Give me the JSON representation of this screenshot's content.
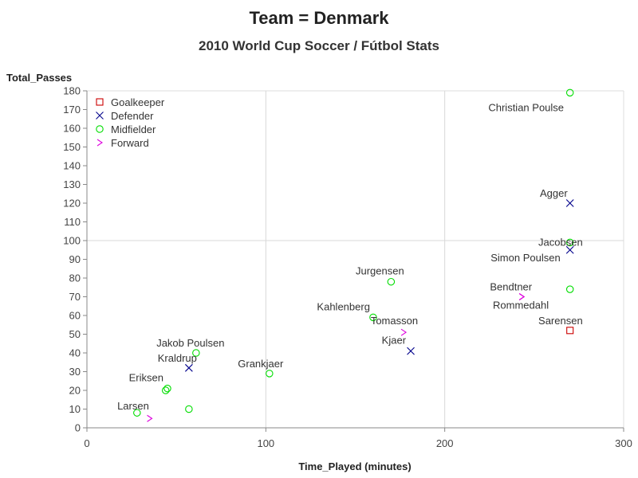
{
  "title": "Team = Denmark",
  "subtitle": "2010 World Cup Soccer / Fútbol Stats",
  "chart_data": {
    "type": "scatter",
    "xlabel": "Time_Played (minutes)",
    "ylabel": "Total_Passes",
    "xlim": [
      0,
      300
    ],
    "ylim": [
      0,
      180
    ],
    "xticks": [
      0,
      100,
      200,
      300
    ],
    "yticks": [
      0,
      10,
      20,
      30,
      40,
      50,
      60,
      70,
      80,
      90,
      100,
      110,
      120,
      130,
      140,
      150,
      160,
      170,
      180
    ],
    "reference_lines": {
      "x": [
        100,
        200
      ],
      "y": [
        100
      ]
    },
    "legend_position": "top-left",
    "series": [
      {
        "name": "Goalkeeper",
        "marker": "square",
        "color": "#cc0000"
      },
      {
        "name": "Defender",
        "marker": "x",
        "color": "#00008b"
      },
      {
        "name": "Midfielder",
        "marker": "circle",
        "color": "#00dd00"
      },
      {
        "name": "Forward",
        "marker": ">",
        "color": "#dd00dd"
      }
    ],
    "points": [
      {
        "label": "Christian Poulse",
        "position": "Midfielder",
        "x": 270,
        "y": 179
      },
      {
        "label": "Agger",
        "position": "Defender",
        "x": 270,
        "y": 120
      },
      {
        "label": "Jacobsen",
        "position": "Midfielder",
        "x": 270,
        "y": 99
      },
      {
        "label": "Simon Poulsen",
        "position": "Defender",
        "x": 270,
        "y": 95
      },
      {
        "label": "",
        "position": "Midfielder",
        "x": 270,
        "y": 74
      },
      {
        "label": "Bendtner",
        "position": "Forward",
        "x": 243,
        "y": 70
      },
      {
        "label": "Rommedahl",
        "position": "Forward",
        "x": 243,
        "y": 70
      },
      {
        "label": "Sarensen",
        "position": "Goalkeeper",
        "x": 270,
        "y": 52
      },
      {
        "label": "Jurgensen",
        "position": "Midfielder",
        "x": 170,
        "y": 78
      },
      {
        "label": "Kahlenberg",
        "position": "Midfielder",
        "x": 160,
        "y": 59
      },
      {
        "label": "Tomasson",
        "position": "Forward",
        "x": 177,
        "y": 51
      },
      {
        "label": "Kjaer",
        "position": "Defender",
        "x": 181,
        "y": 41
      },
      {
        "label": "Grankjaer",
        "position": "Midfielder",
        "x": 102,
        "y": 29
      },
      {
        "label": "Jakob Poulsen",
        "position": "Midfielder",
        "x": 61,
        "y": 40
      },
      {
        "label": "Kraldrup",
        "position": "Defender",
        "x": 57,
        "y": 32
      },
      {
        "label": "Eriksen",
        "position": "Midfielder",
        "x": 45,
        "y": 21
      },
      {
        "label": "",
        "position": "Midfielder",
        "x": 44,
        "y": 20
      },
      {
        "label": "",
        "position": "Midfielder",
        "x": 57,
        "y": 10
      },
      {
        "label": "Larsen",
        "position": "Midfielder",
        "x": 28,
        "y": 8
      },
      {
        "label": "",
        "position": "Forward",
        "x": 35,
        "y": 5
      }
    ]
  }
}
